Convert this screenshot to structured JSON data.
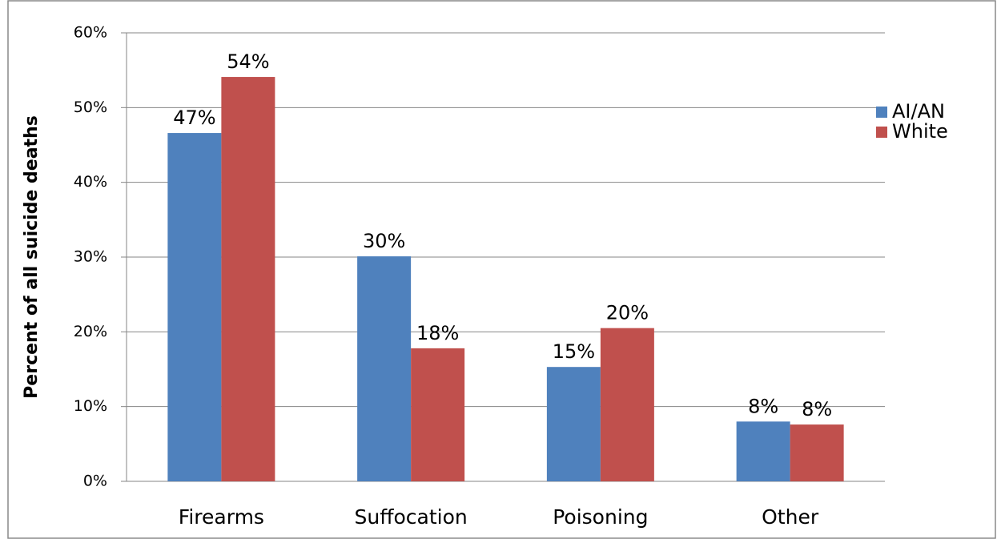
{
  "chart_data": {
    "type": "bar",
    "y_label": "Percent of all suicide deaths",
    "categories": [
      "Firearms",
      "Suffocation",
      "Poisoning",
      "Other"
    ],
    "series": [
      {
        "name": "AI/AN",
        "color": "#4f81bd",
        "values": [
          46.6,
          30.1,
          15.3,
          8.0
        ],
        "value_labels": [
          "47%",
          "30%",
          "15%",
          "8%"
        ]
      },
      {
        "name": "White",
        "color": "#c0504d",
        "values": [
          54.1,
          17.8,
          20.5,
          7.6
        ],
        "value_labels": [
          "54%",
          "18%",
          "20%",
          "8%"
        ]
      }
    ],
    "ylim": [
      0,
      60
    ],
    "yticks": [
      {
        "value": 0,
        "label": "0%"
      },
      {
        "value": 10,
        "label": "10%"
      },
      {
        "value": 20,
        "label": "20%"
      },
      {
        "value": 30,
        "label": "30%"
      },
      {
        "value": 40,
        "label": "40%"
      },
      {
        "value": 50,
        "label": "50%"
      },
      {
        "value": 60,
        "label": "60%"
      }
    ],
    "grid": true,
    "legend": "right"
  }
}
